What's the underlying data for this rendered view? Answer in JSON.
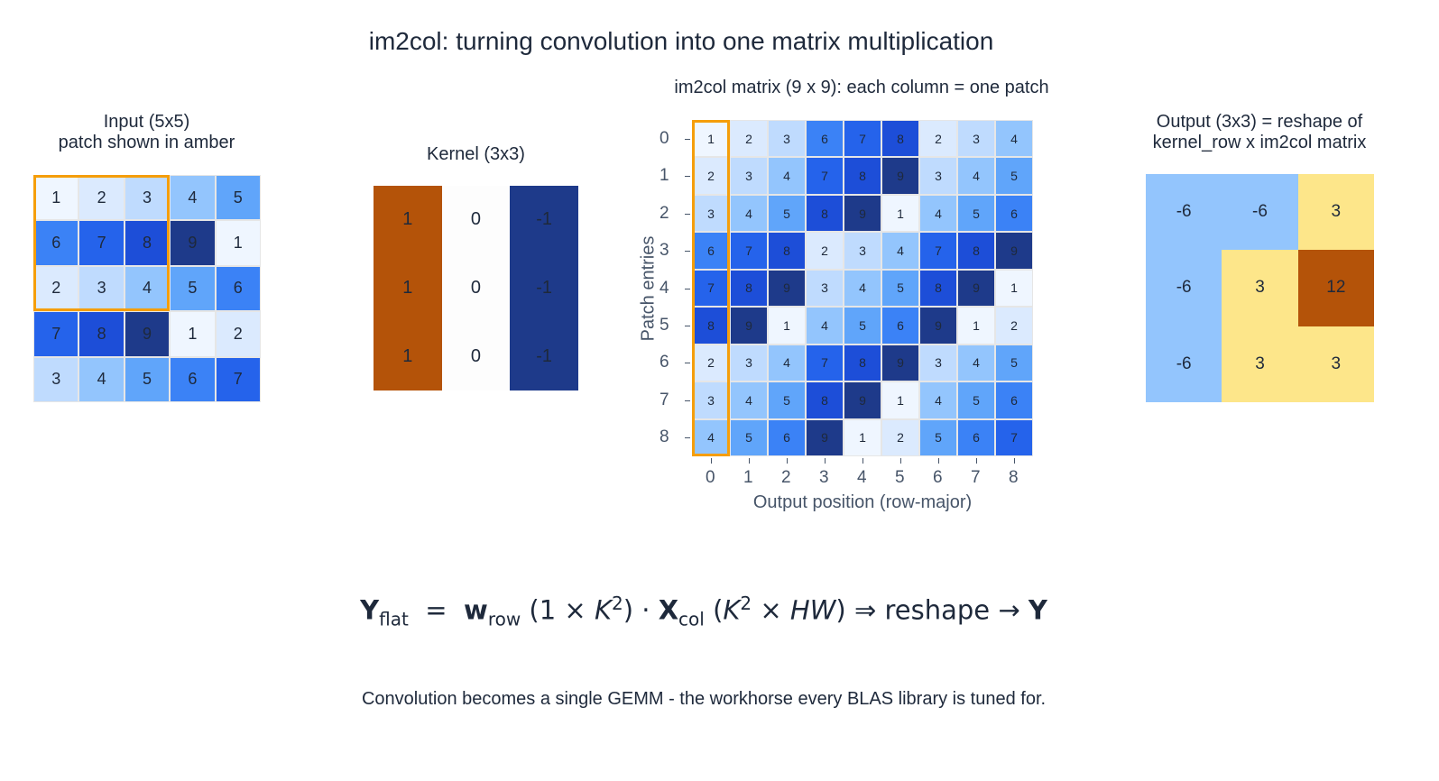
{
  "title": "im2col: turning convolution into one matrix multiplication",
  "colors": {
    "amber_outline": "#f59e0b",
    "kernel_pos": "#b45309",
    "kernel_zero": "#fdfdfd",
    "kernel_neg": "#1e3a8a",
    "output_neg": "#93c5fd",
    "output_low": "#fde68a",
    "output_high": "#b45309",
    "blues": [
      "#eff6ff",
      "#dbeafe",
      "#bfdbfe",
      "#93c5fd",
      "#60a5fa",
      "#3b82f6",
      "#2563eb",
      "#1d4ed8",
      "#1e3a8a"
    ]
  },
  "input_panel": {
    "title_line1": "Input (5x5)",
    "title_line2": "patch shown in amber",
    "values": [
      [
        1,
        2,
        3,
        4,
        5
      ],
      [
        6,
        7,
        8,
        9,
        1
      ],
      [
        2,
        3,
        4,
        5,
        6
      ],
      [
        7,
        8,
        9,
        1,
        2
      ],
      [
        3,
        4,
        5,
        6,
        7
      ]
    ],
    "highlight_patch": {
      "rows": [
        0,
        2
      ],
      "cols": [
        0,
        2
      ]
    }
  },
  "kernel_panel": {
    "title": "Kernel (3x3)",
    "values": [
      [
        1,
        0,
        -1
      ],
      [
        1,
        0,
        -1
      ],
      [
        1,
        0,
        -1
      ]
    ]
  },
  "im2col_panel": {
    "title": "im2col matrix (9 x 9): each column = one patch",
    "ylabel": "Patch entries",
    "xlabel": "Output position (row-major)",
    "x_ticks": [
      "0",
      "1",
      "2",
      "3",
      "4",
      "5",
      "6",
      "7",
      "8"
    ],
    "y_ticks": [
      "0",
      "1",
      "2",
      "3",
      "4",
      "5",
      "6",
      "7",
      "8"
    ],
    "highlight_column": 0,
    "values": [
      [
        1,
        2,
        3,
        6,
        7,
        8,
        2,
        3,
        4
      ],
      [
        2,
        3,
        4,
        7,
        8,
        9,
        3,
        4,
        5
      ],
      [
        3,
        4,
        5,
        8,
        9,
        1,
        4,
        5,
        6
      ],
      [
        6,
        7,
        8,
        2,
        3,
        4,
        7,
        8,
        9
      ],
      [
        7,
        8,
        9,
        3,
        4,
        5,
        8,
        9,
        1
      ],
      [
        8,
        9,
        1,
        4,
        5,
        6,
        9,
        1,
        2
      ],
      [
        2,
        3,
        4,
        7,
        8,
        9,
        3,
        4,
        5
      ],
      [
        3,
        4,
        5,
        8,
        9,
        1,
        4,
        5,
        6
      ],
      [
        4,
        5,
        6,
        9,
        1,
        2,
        5,
        6,
        7
      ]
    ]
  },
  "output_panel": {
    "title_line1": "Output (3x3) = reshape of",
    "title_line2": "kernel_row x im2col matrix",
    "values": [
      [
        -6,
        -6,
        3
      ],
      [
        -6,
        3,
        12
      ],
      [
        -6,
        3,
        3
      ]
    ]
  },
  "formula": {
    "Y": "Y",
    "flat": "flat",
    "eq": "=",
    "w": "w",
    "row": "row",
    "open1": "(1 ×",
    "K": "K",
    "two": "2",
    "close1": ")",
    "dot": "·",
    "X": "X",
    "col": "col",
    "open2": "(",
    "times2": " ×",
    "HW": "HW",
    "close2": ")",
    "implies": "⇒",
    "reshape": "reshape",
    "arrow": "→",
    "Y2": "Y"
  },
  "caption": "Convolution becomes a single GEMM - the workhorse every BLAS library is tuned for."
}
